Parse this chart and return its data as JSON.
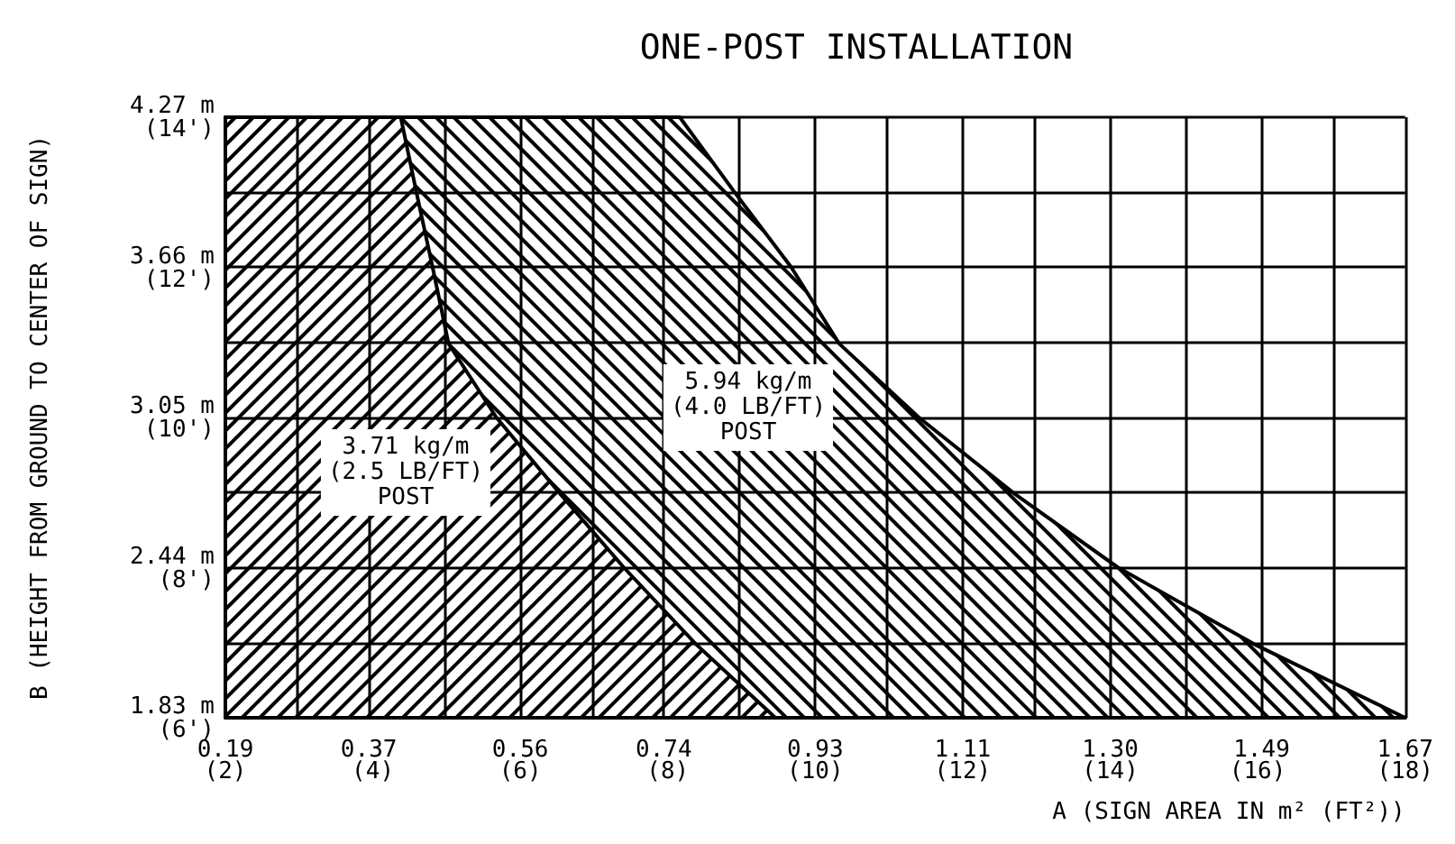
{
  "chart_data": {
    "type": "area",
    "title": "ONE-POST INSTALLATION",
    "xlabel": "A (SIGN AREA IN m² (FT²))",
    "ylabel": "B (HEIGHT FROM GROUND TO CENTER OF SIGN)",
    "series": [
      {
        "color": "#000000",
        "x": [
          0.19,
          0.76,
          0.83,
          0.9,
          0.96,
          1.06,
          1.18,
          1.31,
          1.48,
          1.67
        ],
        "values": [
          4.27,
          4.27,
          3.96,
          3.66,
          3.35,
          3.05,
          2.74,
          2.44,
          2.13,
          1.83
        ]
      },
      {
        "color": "#000000",
        "x": [
          0.19,
          0.41,
          0.43,
          0.45,
          0.47,
          0.53,
          0.61,
          0.69,
          0.78,
          0.88
        ],
        "values": [
          4.27,
          4.27,
          3.96,
          3.66,
          3.35,
          3.05,
          2.74,
          2.44,
          2.13,
          1.83
        ]
      }
    ],
    "annotations": [
      "5.94 kg/m\n(4.0 LB/FT)\nPOST",
      "3.71 kg/m\n(2.5 LB/FT)\nPOST"
    ],
    "xlim": [
      0.19,
      1.67
    ],
    "ylim": [
      1.83,
      4.27
    ],
    "xticks": [
      0.19,
      {
        "value": 0.28,
        "label": null
      },
      0.37,
      {
        "value": 0.465,
        "label": null
      },
      0.56,
      {
        "value": 0.65,
        "label": null
      },
      0.74,
      {
        "value": 0.835,
        "label": null
      },
      0.93,
      {
        "value": 1.02,
        "label": null
      },
      {
        "value": 1.115,
        "label": "1.11"
      },
      {
        "value": 1.205,
        "label": null
      },
      {
        "value": 1.3,
        "label": "1.30"
      },
      {
        "value": 1.395,
        "label": null
      },
      1.49,
      {
        "value": 1.58,
        "label": null
      },
      1.67
    ],
    "x2lim": [
      2,
      18
    ],
    "x2ticks": [
      {
        "value": 2,
        "label": "(2)"
      },
      {
        "value": 4,
        "label": "(4)"
      },
      {
        "value": 6,
        "label": "(6)"
      },
      {
        "value": 8,
        "label": "(8)"
      },
      {
        "value": 10,
        "label": "(10)"
      },
      {
        "value": 12,
        "label": "(12)"
      },
      {
        "value": 14,
        "label": "(14)"
      },
      {
        "value": 16,
        "label": "(16)"
      },
      {
        "value": 18,
        "label": "(18)"
      }
    ],
    "yticks": [
      {
        "value": 1.83,
        "label": "1.83 m"
      },
      {
        "value": 2.135,
        "label": null
      },
      {
        "value": 2.44,
        "label": "2.44 m"
      },
      {
        "value": 2.745,
        "label": null
      },
      {
        "value": 3.05,
        "label": "3.05 m"
      },
      {
        "value": 3.355,
        "label": null
      },
      {
        "value": 3.66,
        "label": "3.66 m"
      },
      {
        "value": 3.965,
        "label": null
      },
      {
        "value": 4.27,
        "label": "4.27 m"
      }
    ],
    "y2lim": [
      6,
      14
    ],
    "y2ticks": [
      {
        "value": 6,
        "label": "(6')"
      },
      {
        "value": 8,
        "label": "(8')"
      },
      {
        "value": 10,
        "label": "(10')"
      },
      {
        "value": 12,
        "label": "(12')"
      },
      {
        "value": 14,
        "label": "(14')"
      }
    ],
    "grid": true,
    "marker": "none",
    "line_style": "solid"
  }
}
